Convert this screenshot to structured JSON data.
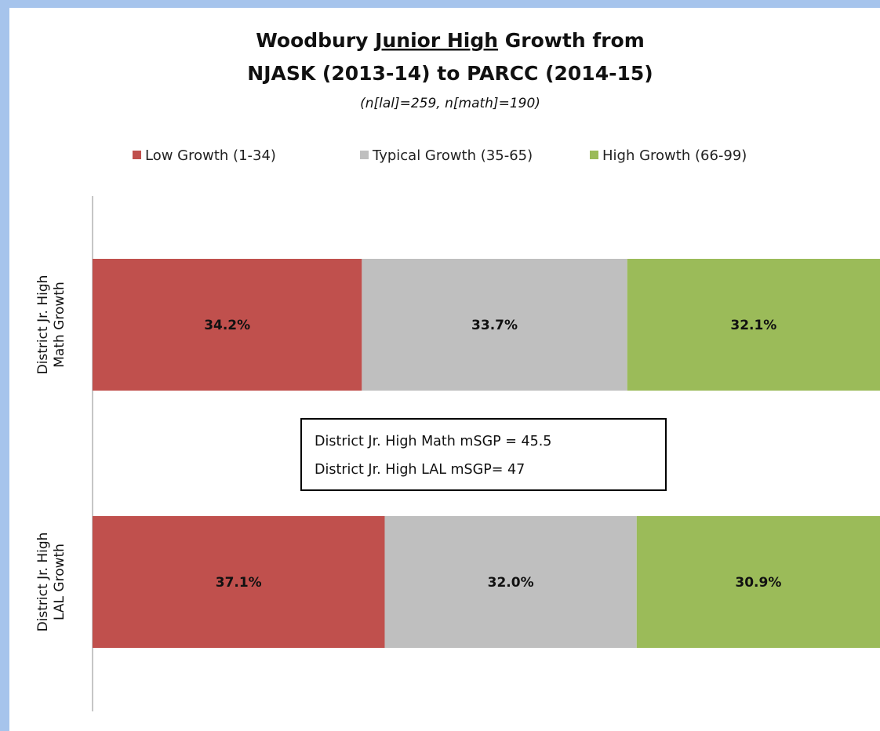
{
  "chart_data": {
    "type": "bar",
    "orientation": "horizontal",
    "stacked": true,
    "title_line1_prefix": "Woodbury ",
    "title_line1_underlined": "Junior High",
    "title_line1_suffix": " Growth from",
    "title_line2": "NJASK (2013-14) to PARCC (2014-15)",
    "subtitle": "(n[lal]=259, n[math]=190)",
    "categories": [
      [
        "District Jr. High",
        "Math Growth"
      ],
      [
        "District Jr. High",
        "LAL Growth"
      ]
    ],
    "series": [
      {
        "name": "Low Growth (1-34)",
        "color": "#c0504d",
        "values": [
          34.2,
          37.1
        ],
        "labels": [
          "34.2%",
          "37.1%"
        ]
      },
      {
        "name": "Typical Growth (35-65)",
        "color": "#bfbfbf",
        "values": [
          33.7,
          32.0
        ],
        "labels": [
          "33.7%",
          "32.0%"
        ]
      },
      {
        "name": "High Growth (66-99)",
        "color": "#9bbb59",
        "values": [
          32.1,
          30.9
        ],
        "labels": [
          "32.1%",
          "30.9%"
        ]
      }
    ],
    "xlim": [
      0,
      100
    ],
    "grid": false,
    "legend_position": "top",
    "annotation": [
      "District Jr. High Math mSGP = 45.5",
      "District Jr. High LAL mSGP= 47"
    ]
  }
}
